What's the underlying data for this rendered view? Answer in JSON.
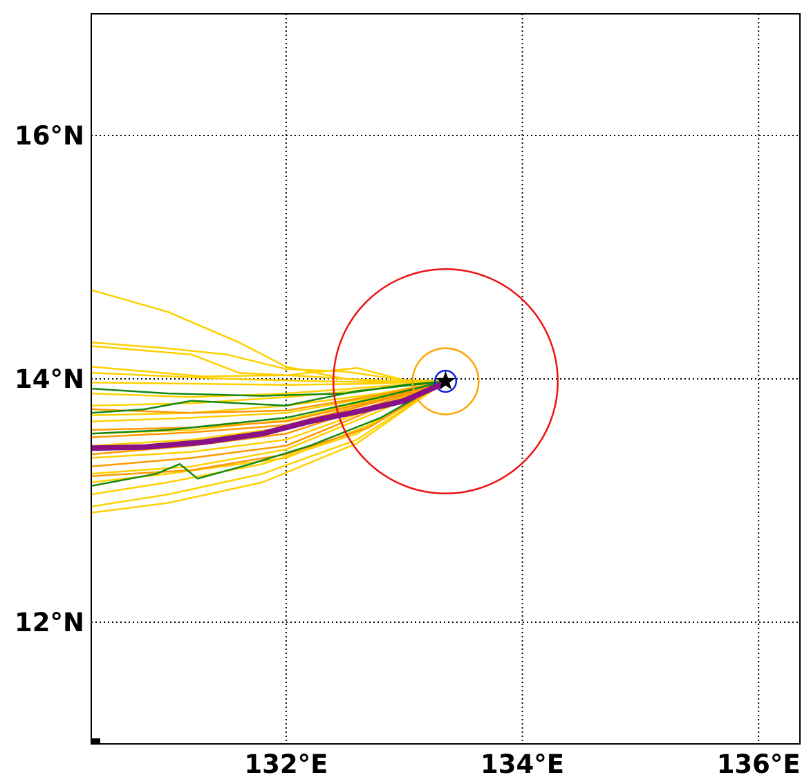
{
  "map": {
    "lon_ticks": [
      "132°E",
      "134°E",
      "136°E"
    ],
    "lat_ticks": [
      "16°N",
      "14°N",
      "12°N"
    ],
    "lon_range": [
      130.35,
      136.35
    ],
    "lat_range": [
      11.0,
      17.0
    ]
  },
  "chart_data": {
    "type": "line",
    "xlabel": "",
    "ylabel": "",
    "xlim": [
      130.35,
      136.35
    ],
    "ylim": [
      11.0,
      17.0
    ],
    "xticks": [
      "132°E",
      "134°E",
      "136°E"
    ],
    "yticks": [
      "16°N",
      "14°N",
      "12°N"
    ],
    "grid": "dotted",
    "colors": {
      "member_yellow": "#ffd000",
      "member_orange": "#ff9900",
      "member_green": "#118811",
      "mean_track": "#881188",
      "outer_ring": "#ee1111",
      "middle_ring": "#ffa500",
      "inner_ring": "#1122dd",
      "center_star": "#000000"
    },
    "center": {
      "lon": 133.35,
      "lat": 13.98
    },
    "rings": [
      {
        "color_key": "outer_ring",
        "radius_deg": 0.95
      },
      {
        "color_key": "middle_ring",
        "radius_deg": 0.28
      },
      {
        "color_key": "inner_ring",
        "radius_deg": 0.09
      }
    ],
    "series": [
      {
        "color_key": "member_yellow",
        "points": [
          [
            130.35,
            14.73
          ],
          [
            131.0,
            14.55
          ],
          [
            131.6,
            14.3
          ],
          [
            132.0,
            14.1
          ],
          [
            132.5,
            14.0
          ],
          [
            133.0,
            13.98
          ],
          [
            133.35,
            13.98
          ]
        ]
      },
      {
        "color_key": "member_yellow",
        "points": [
          [
            130.35,
            14.3
          ],
          [
            131.0,
            14.25
          ],
          [
            131.5,
            14.2
          ],
          [
            132.0,
            14.08
          ],
          [
            132.5,
            14.06
          ],
          [
            133.0,
            13.99
          ],
          [
            133.35,
            13.98
          ]
        ]
      },
      {
        "color_key": "member_yellow",
        "points": [
          [
            130.35,
            14.27
          ],
          [
            131.2,
            14.2
          ],
          [
            131.6,
            14.05
          ],
          [
            132.2,
            14.02
          ],
          [
            132.8,
            13.98
          ],
          [
            133.35,
            13.98
          ]
        ]
      },
      {
        "color_key": "member_yellow",
        "points": [
          [
            130.35,
            14.1
          ],
          [
            131.3,
            14.02
          ],
          [
            132.0,
            14.03
          ],
          [
            132.6,
            14.09
          ],
          [
            133.0,
            13.99
          ],
          [
            133.35,
            13.98
          ]
        ]
      },
      {
        "color_key": "member_yellow",
        "points": [
          [
            130.35,
            14.05
          ],
          [
            131.5,
            14.0
          ],
          [
            132.3,
            13.98
          ],
          [
            132.9,
            13.97
          ],
          [
            133.35,
            13.98
          ]
        ]
      },
      {
        "color_key": "member_yellow",
        "points": [
          [
            130.35,
            13.97
          ],
          [
            131.2,
            13.96
          ],
          [
            132.0,
            13.95
          ],
          [
            132.7,
            13.96
          ],
          [
            133.35,
            13.98
          ]
        ]
      },
      {
        "color_key": "member_yellow",
        "points": [
          [
            130.35,
            13.88
          ],
          [
            131.2,
            13.85
          ],
          [
            132.0,
            13.88
          ],
          [
            132.7,
            13.93
          ],
          [
            133.35,
            13.98
          ]
        ]
      },
      {
        "color_key": "member_yellow",
        "points": [
          [
            130.35,
            13.78
          ],
          [
            131.2,
            13.8
          ],
          [
            132.0,
            13.85
          ],
          [
            132.7,
            13.91
          ],
          [
            133.35,
            13.98
          ]
        ]
      },
      {
        "color_key": "member_yellow",
        "points": [
          [
            130.35,
            13.7
          ],
          [
            131.2,
            13.72
          ],
          [
            132.0,
            13.78
          ],
          [
            132.8,
            13.88
          ],
          [
            133.35,
            13.98
          ]
        ]
      },
      {
        "color_key": "member_yellow",
        "points": [
          [
            130.35,
            13.65
          ],
          [
            131.2,
            13.68
          ],
          [
            132.0,
            13.72
          ],
          [
            132.8,
            13.86
          ],
          [
            133.35,
            13.98
          ]
        ]
      },
      {
        "color_key": "member_yellow",
        "points": [
          [
            130.35,
            13.55
          ],
          [
            131.2,
            13.58
          ],
          [
            132.0,
            13.66
          ],
          [
            132.8,
            13.84
          ],
          [
            133.35,
            13.98
          ]
        ]
      },
      {
        "color_key": "member_yellow",
        "points": [
          [
            130.35,
            13.45
          ],
          [
            131.2,
            13.5
          ],
          [
            132.0,
            13.6
          ],
          [
            132.8,
            13.82
          ],
          [
            133.35,
            13.98
          ]
        ]
      },
      {
        "color_key": "member_yellow",
        "points": [
          [
            130.35,
            13.35
          ],
          [
            131.2,
            13.4
          ],
          [
            132.0,
            13.5
          ],
          [
            132.8,
            13.78
          ],
          [
            133.35,
            13.98
          ]
        ]
      },
      {
        "color_key": "member_yellow",
        "points": [
          [
            130.35,
            13.22
          ],
          [
            131.2,
            13.28
          ],
          [
            132.0,
            13.42
          ],
          [
            132.8,
            13.74
          ],
          [
            133.35,
            13.98
          ]
        ]
      },
      {
        "color_key": "member_yellow",
        "points": [
          [
            130.35,
            13.15
          ],
          [
            131.0,
            13.22
          ],
          [
            132.0,
            13.35
          ],
          [
            132.7,
            13.62
          ],
          [
            133.35,
            13.98
          ]
        ]
      },
      {
        "color_key": "member_yellow",
        "points": [
          [
            130.35,
            13.05
          ],
          [
            131.0,
            13.15
          ],
          [
            131.8,
            13.3
          ],
          [
            132.6,
            13.55
          ],
          [
            133.35,
            13.98
          ]
        ]
      },
      {
        "color_key": "member_yellow",
        "points": [
          [
            130.35,
            12.95
          ],
          [
            131.0,
            13.05
          ],
          [
            131.8,
            13.22
          ],
          [
            132.6,
            13.5
          ],
          [
            133.35,
            13.98
          ]
        ]
      },
      {
        "color_key": "member_yellow",
        "points": [
          [
            130.35,
            12.9
          ],
          [
            131.0,
            12.98
          ],
          [
            131.8,
            13.15
          ],
          [
            132.6,
            13.47
          ],
          [
            133.35,
            13.98
          ]
        ]
      },
      {
        "color_key": "member_orange",
        "points": [
          [
            130.35,
            13.75
          ],
          [
            131.2,
            13.72
          ],
          [
            132.0,
            13.74
          ],
          [
            132.8,
            13.87
          ],
          [
            133.35,
            13.98
          ]
        ]
      },
      {
        "color_key": "member_orange",
        "points": [
          [
            130.35,
            13.58
          ],
          [
            131.2,
            13.6
          ],
          [
            132.0,
            13.65
          ],
          [
            132.8,
            13.83
          ],
          [
            133.35,
            13.98
          ]
        ]
      },
      {
        "color_key": "member_orange",
        "points": [
          [
            130.35,
            13.52
          ],
          [
            131.2,
            13.56
          ],
          [
            132.0,
            13.62
          ],
          [
            132.8,
            13.82
          ],
          [
            133.35,
            13.98
          ]
        ]
      },
      {
        "color_key": "member_orange",
        "points": [
          [
            130.35,
            13.38
          ],
          [
            131.2,
            13.45
          ],
          [
            132.0,
            13.55
          ],
          [
            132.8,
            13.8
          ],
          [
            133.35,
            13.98
          ]
        ]
      },
      {
        "color_key": "member_orange",
        "points": [
          [
            130.35,
            13.28
          ],
          [
            131.2,
            13.35
          ],
          [
            132.0,
            13.45
          ],
          [
            132.8,
            13.77
          ],
          [
            133.35,
            13.98
          ]
        ]
      },
      {
        "color_key": "member_orange",
        "points": [
          [
            130.35,
            13.2
          ],
          [
            131.2,
            13.25
          ],
          [
            132.0,
            13.38
          ],
          [
            132.7,
            13.6
          ],
          [
            133.35,
            13.98
          ]
        ]
      },
      {
        "color_key": "member_green",
        "points": [
          [
            130.35,
            13.92
          ],
          [
            131.0,
            13.88
          ],
          [
            131.8,
            13.86
          ],
          [
            132.5,
            13.88
          ],
          [
            133.0,
            13.95
          ],
          [
            133.35,
            13.98
          ]
        ]
      },
      {
        "color_key": "member_green",
        "points": [
          [
            130.35,
            13.72
          ],
          [
            130.8,
            13.75
          ],
          [
            131.2,
            13.82
          ],
          [
            132.0,
            13.78
          ],
          [
            132.6,
            13.9
          ],
          [
            133.35,
            13.98
          ]
        ]
      },
      {
        "color_key": "member_green",
        "points": [
          [
            130.35,
            13.55
          ],
          [
            131.0,
            13.58
          ],
          [
            132.0,
            13.68
          ],
          [
            132.8,
            13.85
          ],
          [
            133.35,
            13.98
          ]
        ]
      },
      {
        "color_key": "member_green",
        "points": [
          [
            130.35,
            13.12
          ],
          [
            130.9,
            13.22
          ],
          [
            131.1,
            13.3
          ],
          [
            131.25,
            13.18
          ],
          [
            131.7,
            13.3
          ],
          [
            132.2,
            13.45
          ],
          [
            132.8,
            13.68
          ],
          [
            133.35,
            13.98
          ]
        ]
      }
    ],
    "mean_track": {
      "color_key": "mean_track",
      "points": [
        [
          130.35,
          13.43
        ],
        [
          130.8,
          13.44
        ],
        [
          131.3,
          13.48
        ],
        [
          131.8,
          13.55
        ],
        [
          132.2,
          13.65
        ],
        [
          132.6,
          13.73
        ],
        [
          133.0,
          13.82
        ],
        [
          133.35,
          13.97
        ]
      ]
    }
  }
}
